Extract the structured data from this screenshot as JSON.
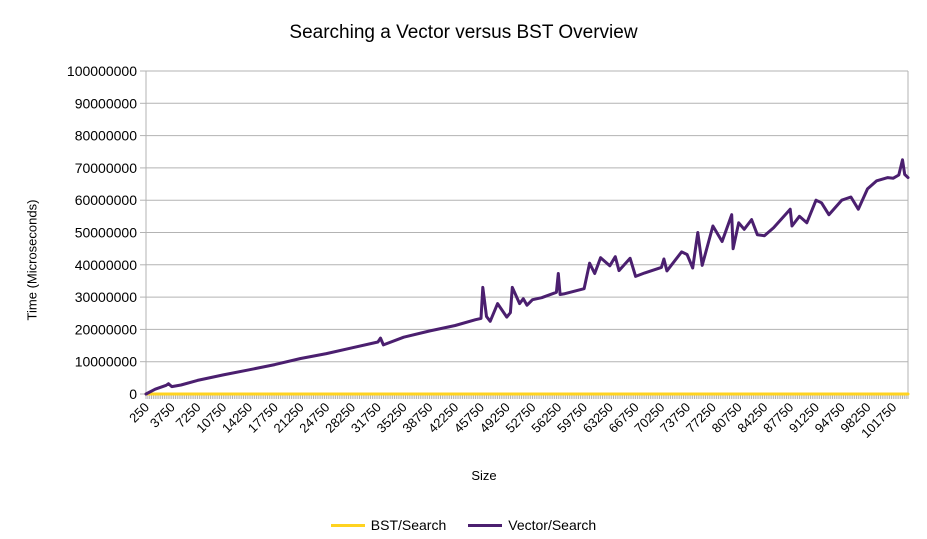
{
  "chart_data": {
    "type": "line",
    "title": "Searching a Vector versus BST Overview",
    "xlabel": "Size",
    "ylabel": "Time (Microseconds)",
    "ylim": [
      0,
      100000000
    ],
    "yticks": [
      0,
      10000000,
      20000000,
      30000000,
      40000000,
      50000000,
      60000000,
      70000000,
      80000000,
      90000000,
      100000000
    ],
    "xtick_labels": [
      "250",
      "3750",
      "7250",
      "10750",
      "14250",
      "17750",
      "21250",
      "24750",
      "28250",
      "31750",
      "35250",
      "38750",
      "42250",
      "45750",
      "49250",
      "52750",
      "56250",
      "59750",
      "63250",
      "66750",
      "70250",
      "73750",
      "77250",
      "80750",
      "84250",
      "87750",
      "91250",
      "94750",
      "98250",
      "101750"
    ],
    "x_step": 250,
    "x_range": [
      250,
      103750
    ],
    "grid": "horizontal",
    "legend_position": "bottom",
    "series": [
      {
        "name": "BST/Search",
        "color": "#ffd320",
        "x": [
          250,
          103750
        ],
        "values": [
          0,
          0
        ]
      },
      {
        "name": "Vector/Search",
        "color": "#4b1f6f",
        "x": [
          250,
          1500,
          3000,
          3300,
          3750,
          5000,
          7250,
          10750,
          14250,
          17750,
          21250,
          24750,
          28250,
          31750,
          32100,
          32500,
          35250,
          38750,
          42250,
          45000,
          45750,
          46000,
          46500,
          47000,
          48000,
          49250,
          49750,
          50000,
          51000,
          51500,
          52000,
          52750,
          54000,
          56000,
          56250,
          56500,
          57000,
          59750,
          60500,
          61200,
          62000,
          63250,
          64000,
          64500,
          66000,
          66750,
          68000,
          70250,
          70600,
          71000,
          73000,
          73750,
          74500,
          75200,
          75800,
          77250,
          78500,
          79800,
          80000,
          80750,
          81500,
          82500,
          83300,
          84250,
          85500,
          87750,
          88000,
          89000,
          90000,
          91250,
          92000,
          93000,
          94750,
          96000,
          97000,
          98250,
          99500,
          101000,
          101750,
          102500,
          103000,
          103300,
          103750
        ],
        "values": [
          0,
          1500000,
          2700000,
          3200000,
          2300000,
          2800000,
          4200000,
          5900000,
          7500000,
          9100000,
          11000000,
          12500000,
          14300000,
          16100000,
          17300000,
          15200000,
          17600000,
          19500000,
          21200000,
          23000000,
          23400000,
          33000000,
          24000000,
          22500000,
          28000000,
          23800000,
          25200000,
          33000000,
          28000000,
          29500000,
          27500000,
          29200000,
          29800000,
          31500000,
          37300000,
          30800000,
          31000000,
          32600000,
          40500000,
          37300000,
          42200000,
          39700000,
          42500000,
          38200000,
          42000000,
          36400000,
          37500000,
          39200000,
          41800000,
          38100000,
          44000000,
          43200000,
          39000000,
          50000000,
          39800000,
          52000000,
          47200000,
          55500000,
          45000000,
          53000000,
          51000000,
          54000000,
          49300000,
          49000000,
          51500000,
          57200000,
          52000000,
          55000000,
          53000000,
          60000000,
          59200000,
          55500000,
          60000000,
          61000000,
          57200000,
          63500000,
          66000000,
          67000000,
          66800000,
          67800000,
          72500000,
          68000000,
          67000000
        ]
      }
    ]
  }
}
